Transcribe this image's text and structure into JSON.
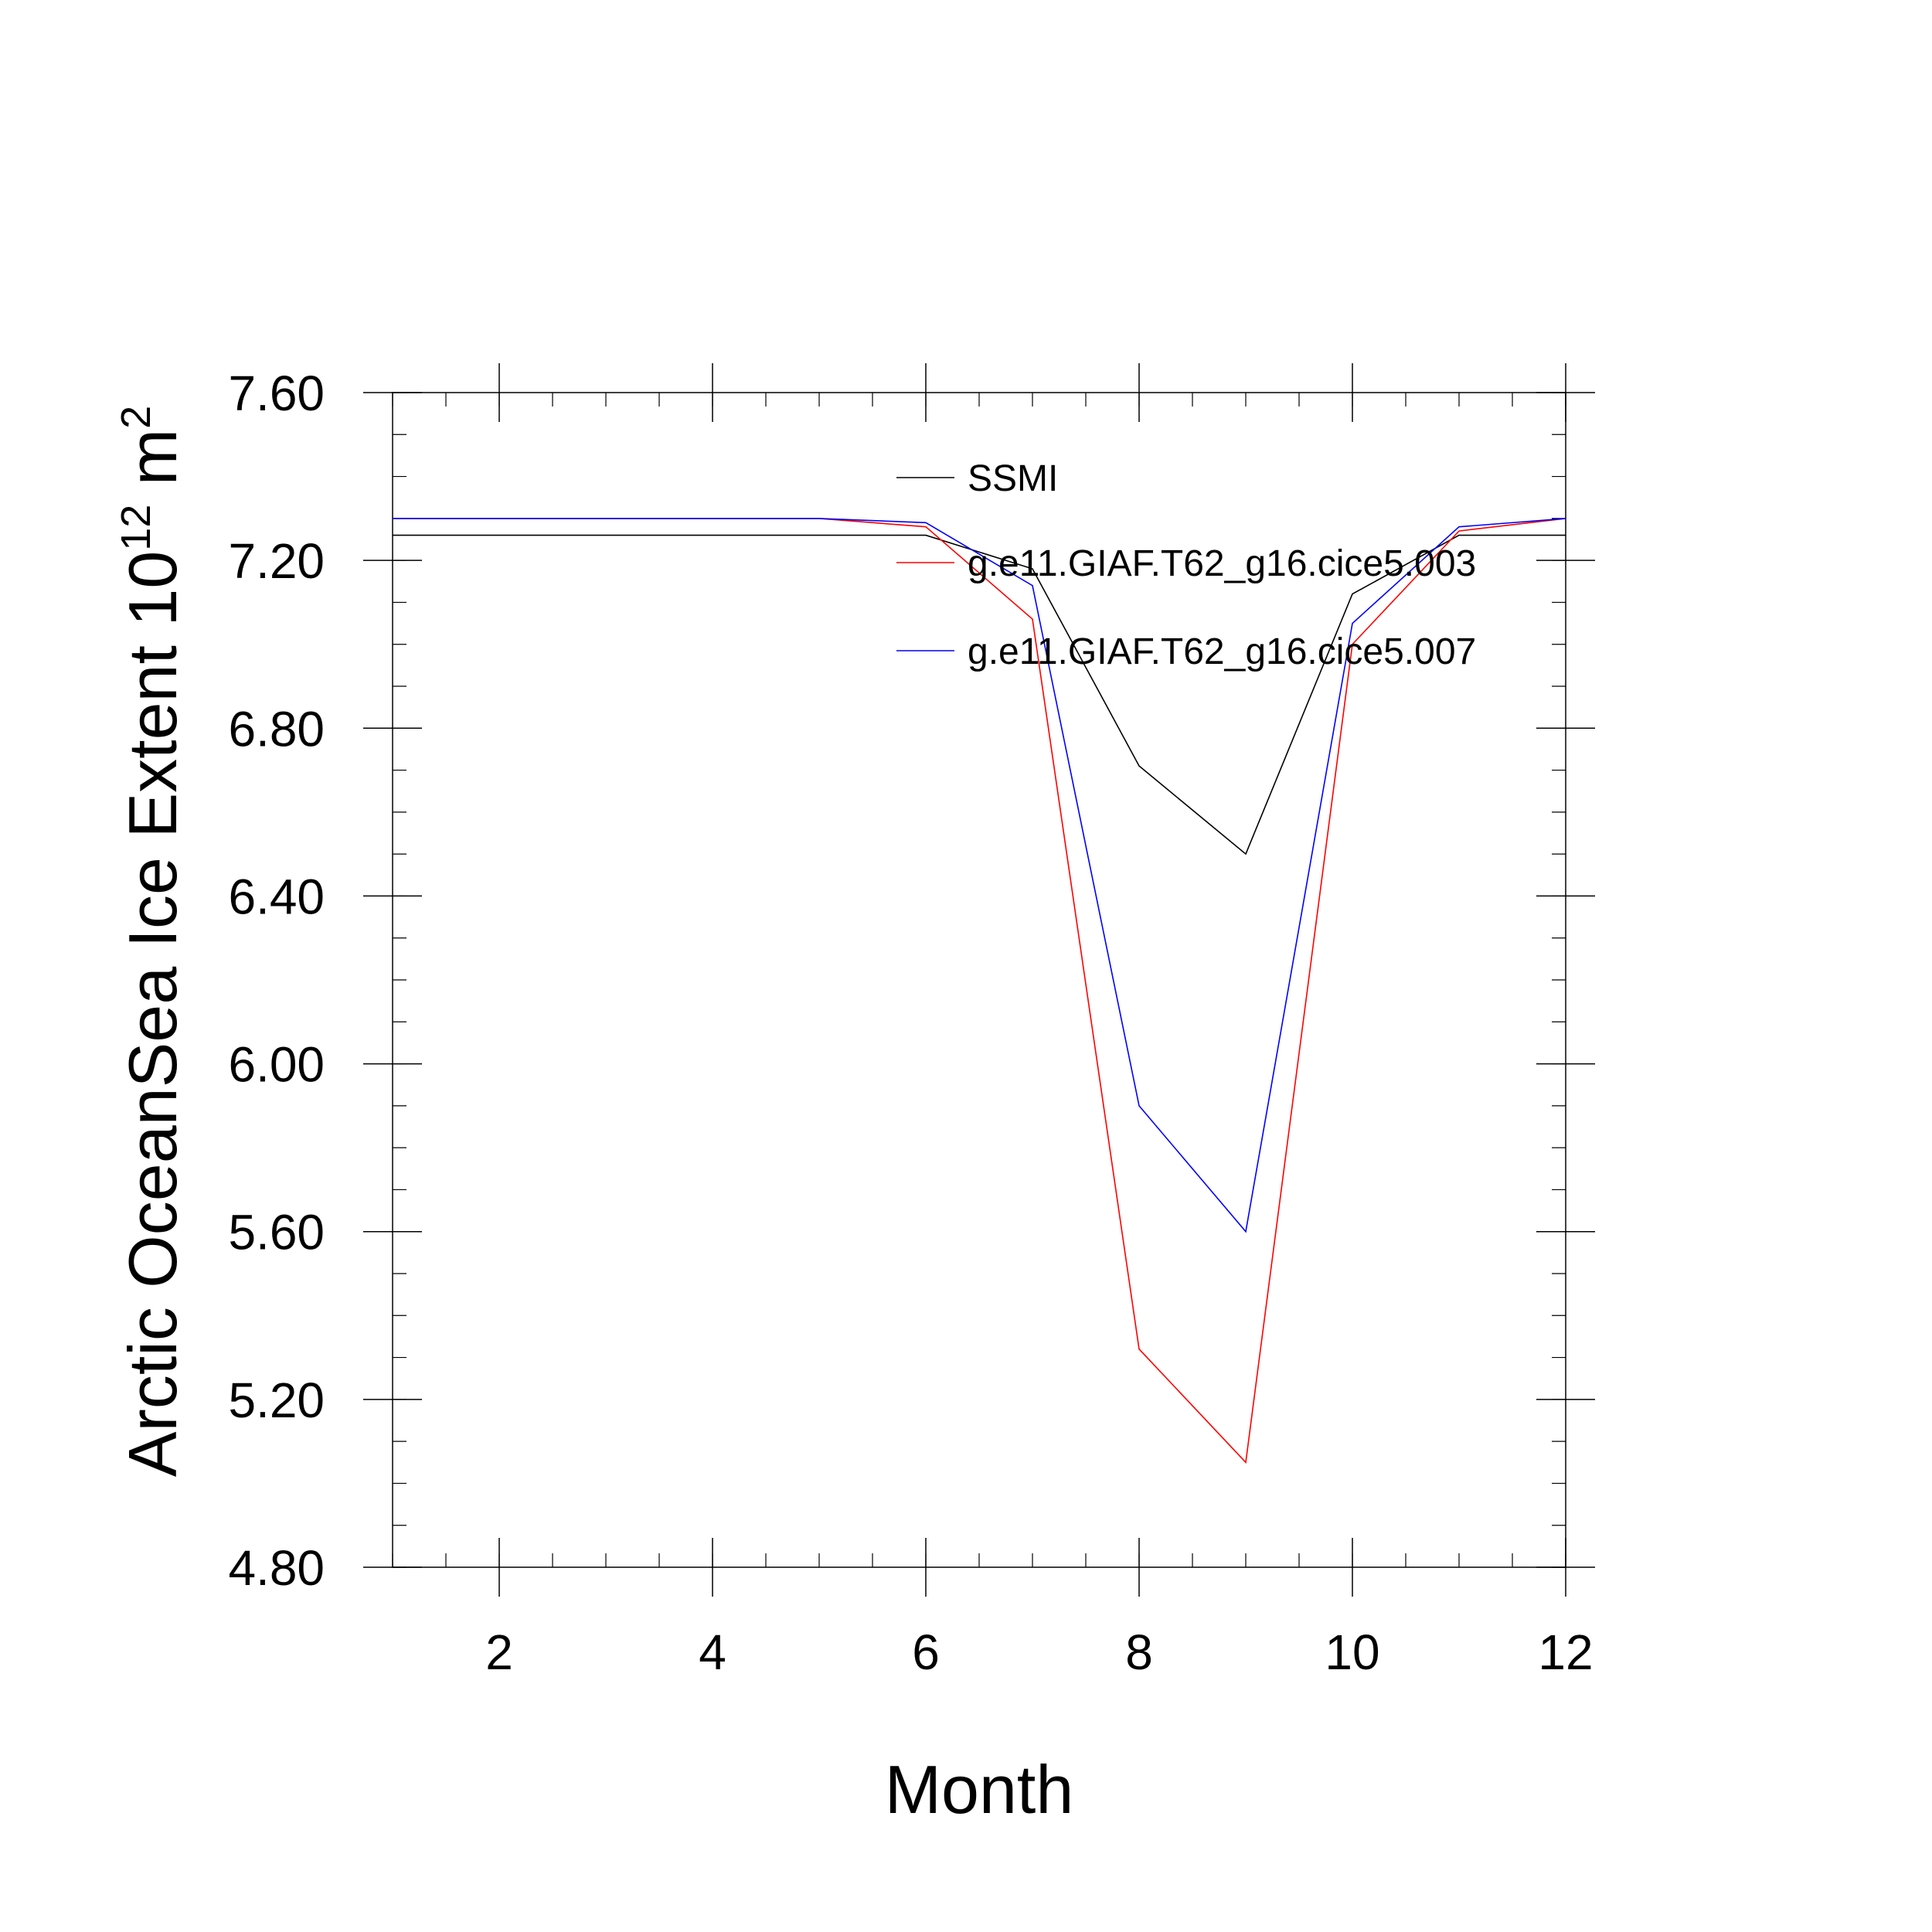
{
  "chart_data": {
    "type": "line",
    "xlabel": "Month",
    "ylabel": {
      "text": "Arctic OceanSea Ice Extent 10",
      "exponent": "12",
      "unit": " m",
      "unit_exponent": "2"
    },
    "xlim": [
      1,
      12
    ],
    "ylim": [
      4.8,
      7.6
    ],
    "x_ticks": [
      2,
      4,
      6,
      8,
      10,
      12
    ],
    "x_tick_labels": [
      "2",
      "4",
      "6",
      "8",
      "10",
      "12"
    ],
    "y_ticks": [
      4.8,
      5.2,
      5.6,
      6.0,
      6.4,
      6.8,
      7.2,
      7.6
    ],
    "y_tick_labels": [
      "4.80",
      "5.20",
      "5.60",
      "6.00",
      "6.40",
      "6.80",
      "7.20",
      "7.60"
    ],
    "x_minor_step": 0.5,
    "y_minor_step": 0.1,
    "grid": false,
    "legend_position": "top-right",
    "x": [
      1,
      2,
      3,
      4,
      5,
      6,
      7,
      8,
      9,
      10,
      11,
      12
    ],
    "series": [
      {
        "name": "SSMI",
        "color": "#000000",
        "values": [
          7.26,
          7.26,
          7.26,
          7.26,
          7.26,
          7.26,
          7.18,
          6.71,
          6.5,
          7.12,
          7.26,
          7.26
        ]
      },
      {
        "name": "g.e11.GIAF.T62_g16.cice5.003",
        "color": "#ff0000",
        "values": [
          7.3,
          7.3,
          7.3,
          7.3,
          7.3,
          7.28,
          7.06,
          5.32,
          5.05,
          7.0,
          7.27,
          7.3
        ]
      },
      {
        "name": "g.e11.GIAF.T62_g16.cice5.007",
        "color": "#0000ff",
        "values": [
          7.3,
          7.3,
          7.3,
          7.3,
          7.3,
          7.29,
          7.14,
          5.9,
          5.6,
          7.05,
          7.28,
          7.3
        ]
      }
    ]
  }
}
